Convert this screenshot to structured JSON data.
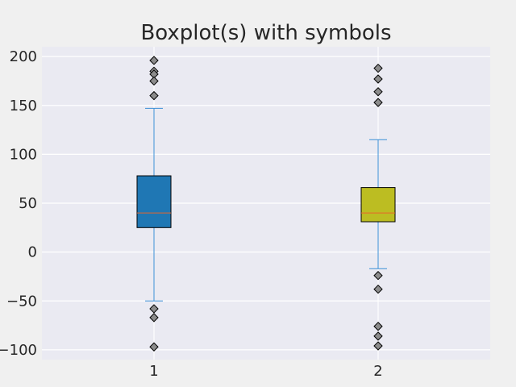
{
  "chart_data": {
    "type": "boxplot",
    "title": "Boxplot(s) with symbols",
    "xlabel": "",
    "ylabel": "",
    "ylim": [
      -110,
      210
    ],
    "xlim": [
      0.5,
      2.5
    ],
    "grid": true,
    "y_ticks": [
      -100,
      -50,
      0,
      50,
      100,
      150,
      200
    ],
    "y_tick_labels": [
      "−100",
      "−50",
      "0",
      "50",
      "100",
      "150",
      "200"
    ],
    "categories": [
      "1",
      "2"
    ],
    "boxes": [
      {
        "label": "1",
        "whisker_low": -50,
        "q1": 25,
        "median": 40,
        "q3": 78,
        "whisker_high": 147,
        "fliers": [
          196,
          185,
          182,
          175,
          160,
          -58,
          -67,
          -97
        ],
        "face_color": "#1f77b4"
      },
      {
        "label": "2",
        "whisker_low": -17,
        "q1": 31,
        "median": 40,
        "q3": 66,
        "whisker_high": 115,
        "fliers": [
          188,
          177,
          164,
          153,
          -24,
          -38,
          -76,
          -86,
          -96
        ],
        "face_color": "#bcbd22"
      }
    ],
    "colors": {
      "whisker": "#3a8fd6",
      "median": "#e8642b",
      "flier_fill": "#8c8c8c",
      "plot_background": "#eaeaf2",
      "grid": "#ffffff",
      "figure_background": "#f0f0f0"
    }
  }
}
